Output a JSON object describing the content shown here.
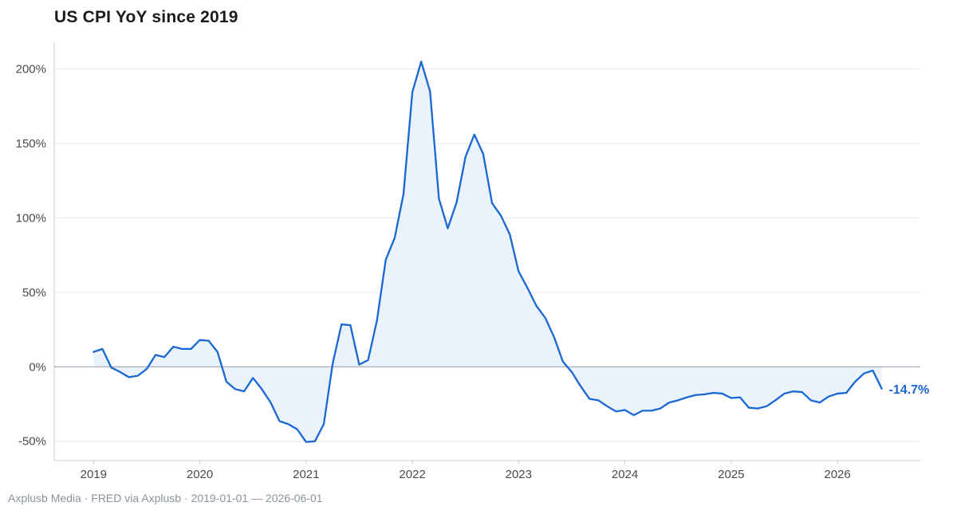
{
  "chart_data": {
    "type": "area",
    "title": "US CPI YoY since 2019",
    "xlabel": "",
    "ylabel": "",
    "ylim": [
      -63,
      218
    ],
    "xlim": [
      2018.63,
      2026.78
    ],
    "y_ticks": [
      -50,
      0,
      50,
      100,
      150,
      200
    ],
    "y_tick_labels": [
      "-50%",
      "0%",
      "50%",
      "100%",
      "150%",
      "200%"
    ],
    "x_ticks": [
      2019,
      2020,
      2021,
      2022,
      2023,
      2024,
      2025,
      2026
    ],
    "x_tick_labels": [
      "2019",
      "2020",
      "2021",
      "2022",
      "2023",
      "2024",
      "2025",
      "2026"
    ],
    "grid": "horizontal",
    "legend": "none",
    "end_label": "-14.7%",
    "series": [
      {
        "x": [
          "2019-01",
          "2019-02",
          "2019-03",
          "2019-04",
          "2019-05",
          "2019-06",
          "2019-07",
          "2019-08",
          "2019-09",
          "2019-10",
          "2019-11",
          "2019-12",
          "2020-01",
          "2020-02",
          "2020-03",
          "2020-04",
          "2020-05",
          "2020-06",
          "2020-07",
          "2020-08",
          "2020-09",
          "2020-10",
          "2020-11",
          "2020-12",
          "2021-01",
          "2021-02",
          "2021-03",
          "2021-04",
          "2021-05",
          "2021-06",
          "2021-07",
          "2021-08",
          "2021-09",
          "2021-10",
          "2021-11",
          "2021-12",
          "2022-01",
          "2022-02",
          "2022-03",
          "2022-04",
          "2022-05",
          "2022-06",
          "2022-07",
          "2022-08",
          "2022-09",
          "2022-10",
          "2022-11",
          "2022-12",
          "2023-01",
          "2023-02",
          "2023-03",
          "2023-04",
          "2023-05",
          "2023-06",
          "2023-07",
          "2023-08",
          "2023-09",
          "2023-10",
          "2023-11",
          "2023-12",
          "2024-01",
          "2024-02",
          "2024-03",
          "2024-04",
          "2024-05",
          "2024-06",
          "2024-07",
          "2024-08",
          "2024-09",
          "2024-10",
          "2024-11",
          "2024-12",
          "2025-01",
          "2025-02",
          "2025-03",
          "2025-04",
          "2025-05",
          "2025-06",
          "2025-07",
          "2025-08",
          "2025-09",
          "2025-10",
          "2025-11",
          "2025-12",
          "2026-01",
          "2026-02",
          "2026-03",
          "2026-04",
          "2026-05",
          "2026-06"
        ],
        "y": [
          10,
          12,
          -0.5,
          -3.5,
          -7,
          -6,
          -1.5,
          8,
          6.5,
          13.5,
          12,
          12,
          18,
          17.5,
          10,
          -10,
          -15,
          -16.5,
          -7.5,
          -15,
          -24,
          -36.5,
          -38.5,
          -42,
          -50.5,
          -50,
          -38.5,
          2,
          28.5,
          28,
          1.5,
          4.5,
          31,
          72,
          86.5,
          116,
          184.5,
          205,
          185,
          113,
          93,
          110.5,
          141,
          156,
          143,
          110,
          101.5,
          89,
          64,
          53,
          41,
          33,
          20,
          3.5,
          -3.5,
          -13,
          -21.5,
          -22.5,
          -26.5,
          -30,
          -29,
          -32.5,
          -29.5,
          -29.5,
          -28,
          -24,
          -22.5,
          -20.5,
          -19,
          -18.5,
          -17.5,
          -18,
          -21,
          -20.5,
          -27.5,
          -28,
          -26.5,
          -22.5,
          -18,
          -16.5,
          -17,
          -22.5,
          -24,
          -20,
          -18,
          -17.5,
          -10,
          -4.5,
          -2.5,
          -14.7
        ]
      }
    ],
    "colors": {
      "line": "#1967d2",
      "fill": "#eaf2fb",
      "grid": "#e6e6e6",
      "zero_line": "#9aa4b6",
      "axis": "#cfcfcf",
      "end_label": "#1967d2"
    }
  },
  "footer": {
    "source": "Axplusb Media · FRED via Axplusb · 2019-01-01 — 2026-06-01"
  }
}
